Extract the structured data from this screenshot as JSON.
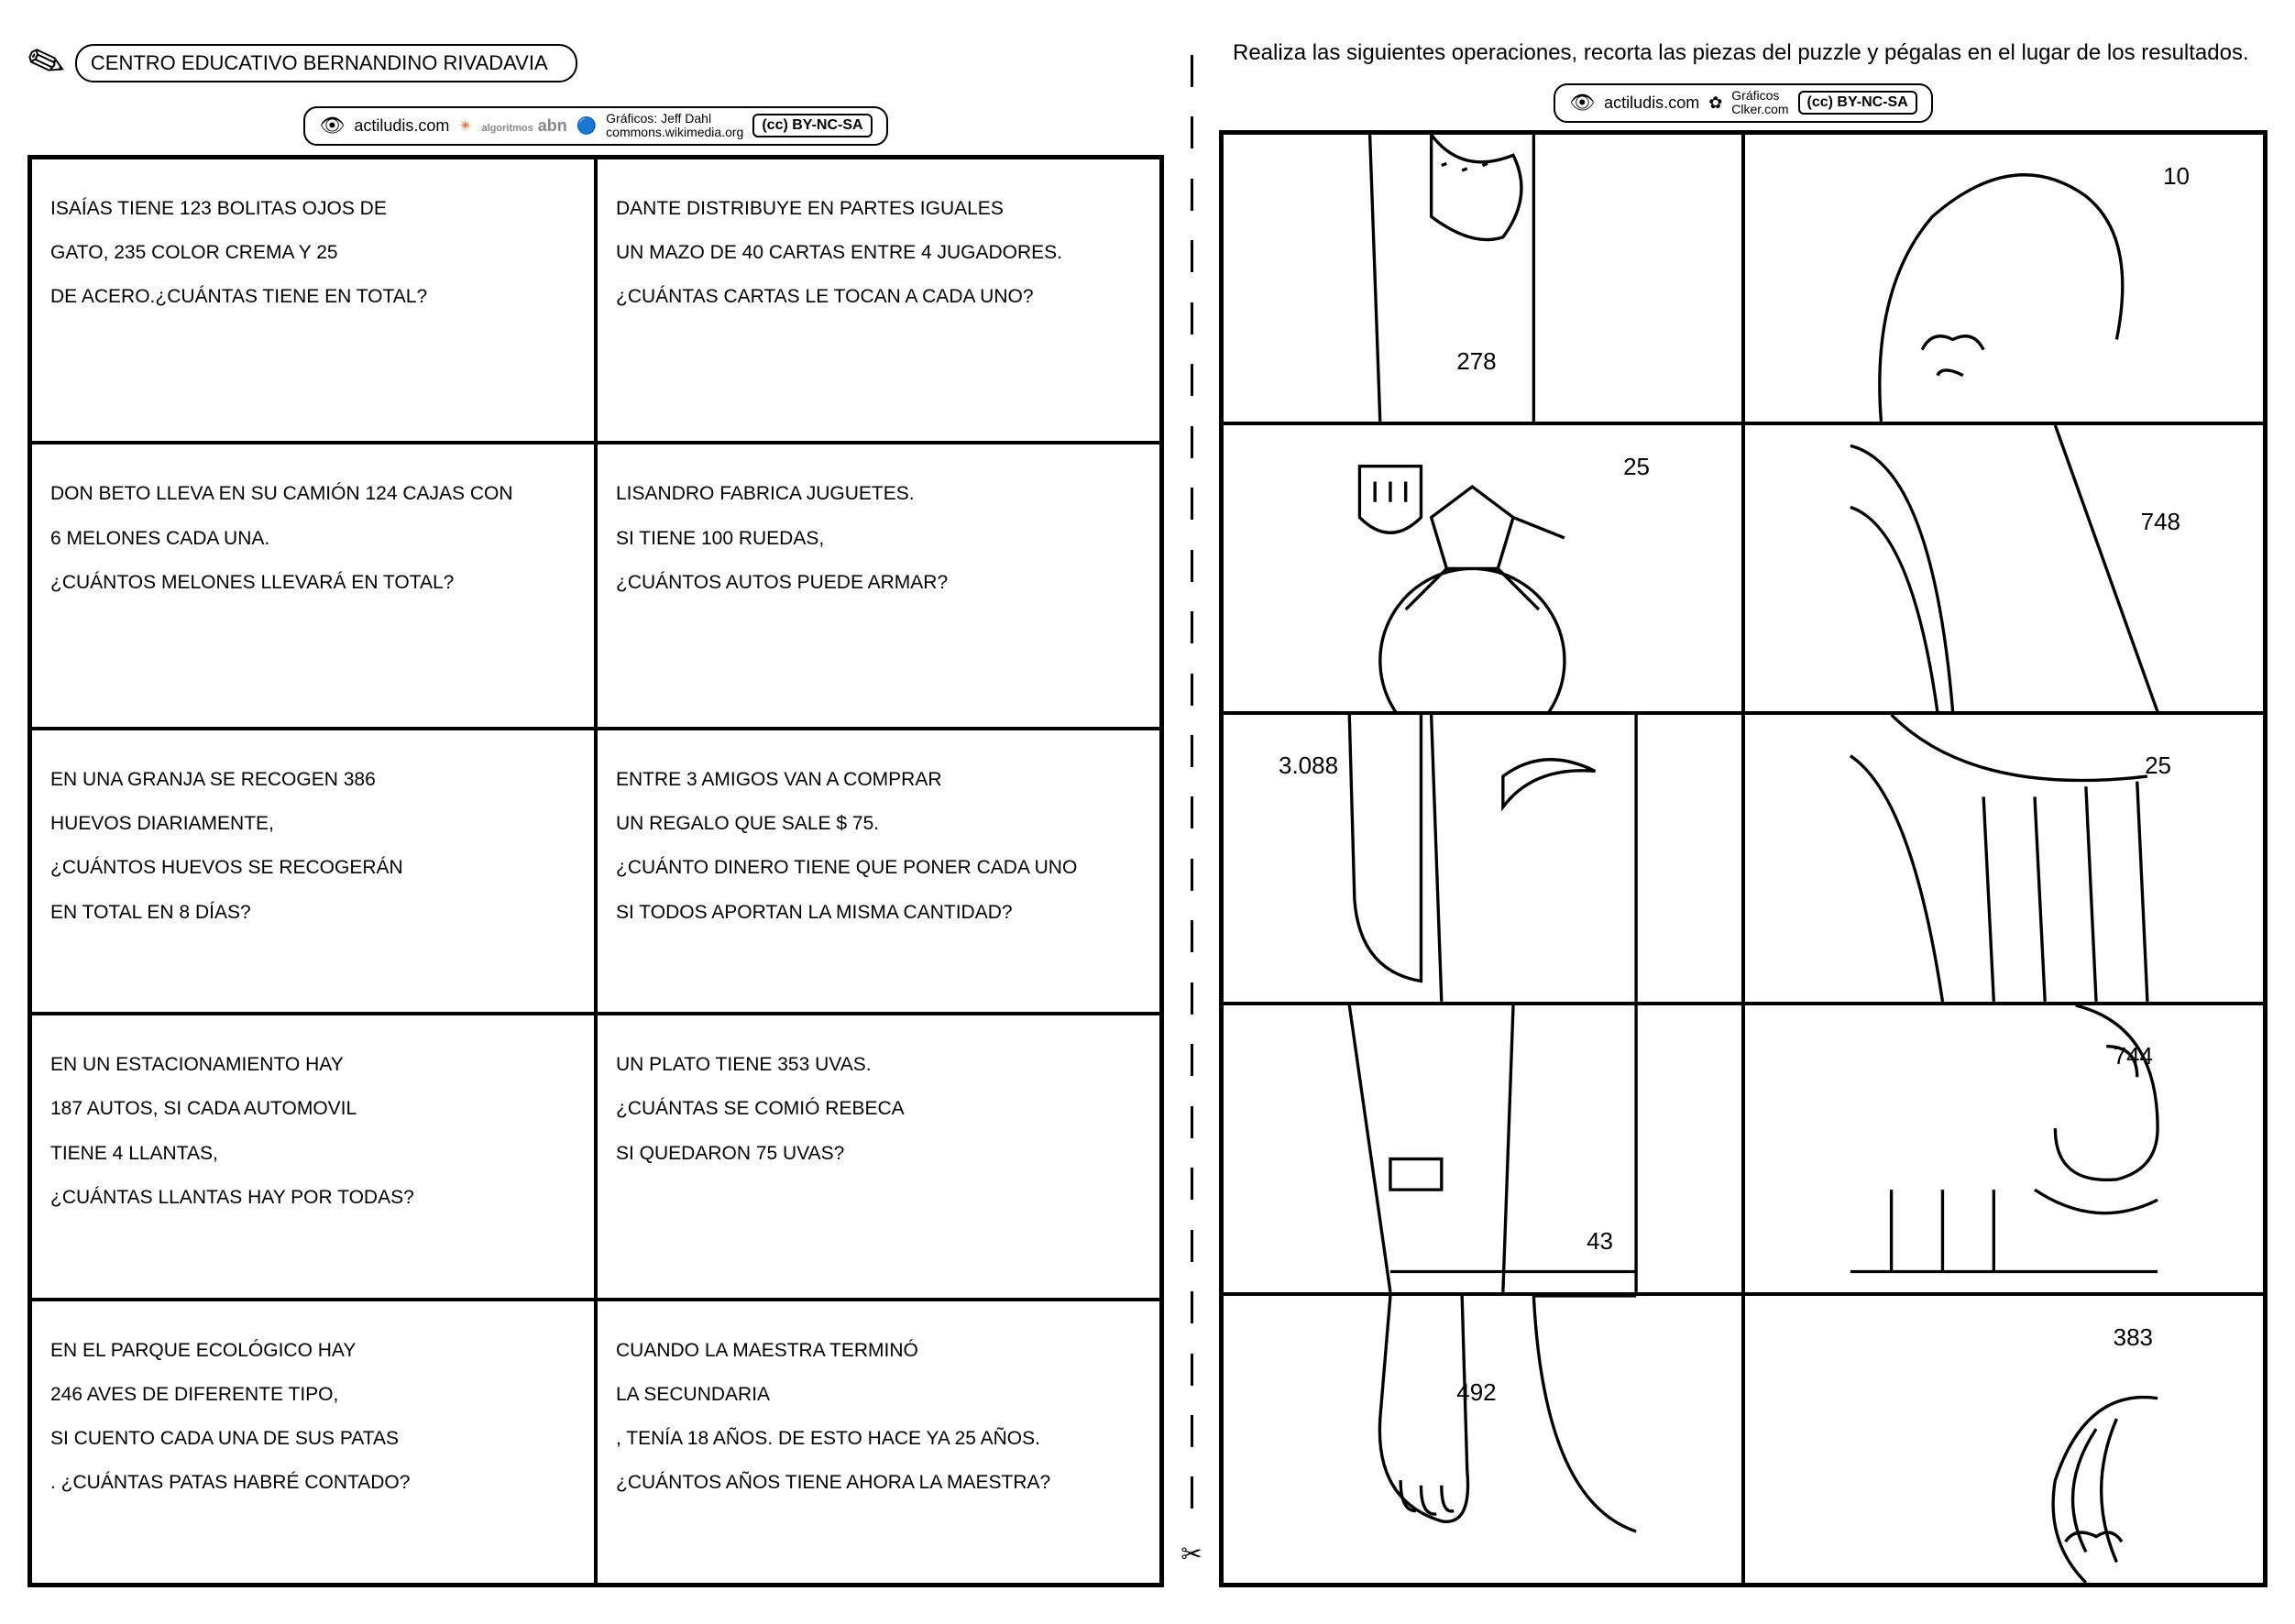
{
  "header": {
    "school_name": "CENTRO EDUCATIVO BERNANDINO RIVADAVIA"
  },
  "credits_left": {
    "site": "actiludis.com",
    "abn": "abn",
    "algoritmos": "algoritmos",
    "graficos_label": "Gráficos: Jeff Dahl",
    "commons": "commons.wikimedia.org",
    "cc": "(cc) BY-NC-SA"
  },
  "credits_right": {
    "site": "actiludis.com",
    "graficos": "Gráficos",
    "clker": "Clker.com",
    "cc": "(cc) BY-NC-SA"
  },
  "instruction": "Realiza las siguientes operaciones, recorta las piezas del puzzle y pégalas en el lugar de los resultados.",
  "problems": [
    {
      "l1": "ISAÍAS TIENE 123 BOLITAS OJOS DE",
      "l2": "GATO, 235 COLOR CREMA Y 25",
      "l3": "DE ACERO.¿CUÁNTAS TIENE EN TOTAL?"
    },
    {
      "l1": "DANTE DISTRIBUYE EN PARTES IGUALES",
      "l2": "UN MAZO DE 40 CARTAS ENTRE 4 JUGADORES.",
      "l3": "¿CUÁNTAS CARTAS LE TOCAN A CADA UNO?"
    },
    {
      "l1": "DON BETO LLEVA EN SU CAMIÓN 124 CAJAS CON",
      "l2": "6 MELONES CADA UNA.",
      "l3": "¿CUÁNTOS MELONES LLEVARÁ EN TOTAL?"
    },
    {
      "l1": "LISANDRO FABRICA JUGUETES.",
      "l2": "SI TIENE 100 RUEDAS,",
      "l3": "¿CUÁNTOS AUTOS PUEDE ARMAR?"
    },
    {
      "l1": "EN UNA GRANJA SE RECOGEN 386",
      "l2": "HUEVOS DIARIAMENTE,",
      "l3": "¿CUÁNTOS HUEVOS SE RECOGERÁN",
      "l4": "EN TOTAL EN 8 DÍAS?"
    },
    {
      "l1": "ENTRE 3 AMIGOS VAN A COMPRAR",
      "l2": "UN REGALO QUE SALE $ 75.",
      "l3": "¿CUÁNTO DINERO TIENE QUE PONER CADA UNO",
      "l4": "SI TODOS APORTAN LA MISMA CANTIDAD?"
    },
    {
      "l1": "EN UN ESTACIONAMIENTO HAY",
      "l2": "187 AUTOS, SI CADA AUTOMOVIL",
      "l3": "TIENE 4 LLANTAS,",
      "l4": "¿CUÁNTAS LLANTAS HAY POR TODAS?"
    },
    {
      "l1": "UN PLATO TIENE 353 UVAS.",
      "l2": "¿CUÁNTAS SE COMIÓ REBECA",
      "l3": "SI QUEDARON  75 UVAS?"
    },
    {
      "l1": "EN EL PARQUE ECOLÓGICO HAY",
      "l2": "246 AVES DE DIFERENTE TIPO,",
      "l3": "SI CUENTO CADA UNA DE SUS PATAS",
      "l4": ". ¿CUÁNTAS PATAS HABRÉ CONTADO?"
    },
    {
      "l1": "CUANDO LA MAESTRA TERMINÓ",
      "l2": "LA SECUNDARIA",
      "l3": ", TENÍA 18 AÑOS. DE ESTO HACE YA 25 AÑOS.",
      "l4": "¿CUÁNTOS AÑOS TIENE AHORA LA MAESTRA?"
    }
  ],
  "puzzle": [
    {
      "num": "278",
      "pos": "bottom:50px;left:45%"
    },
    {
      "num": "10",
      "pos": "top:30px;right:80px"
    },
    {
      "num": "25",
      "pos": "top:30px;right:100px"
    },
    {
      "num": "748",
      "pos": "top:90px;right:90px"
    },
    {
      "num": "3.088",
      "pos": "top:40px;left:60px"
    },
    {
      "num": "25",
      "pos": "top:40px;right:100px"
    },
    {
      "num": "43",
      "pos": "bottom:40px;right:140px"
    },
    {
      "num": "744",
      "pos": "top:40px;right:120px"
    },
    {
      "num": "492",
      "pos": "top:90px;left:45%"
    },
    {
      "num": "383",
      "pos": "top:30px;right:120px"
    }
  ]
}
